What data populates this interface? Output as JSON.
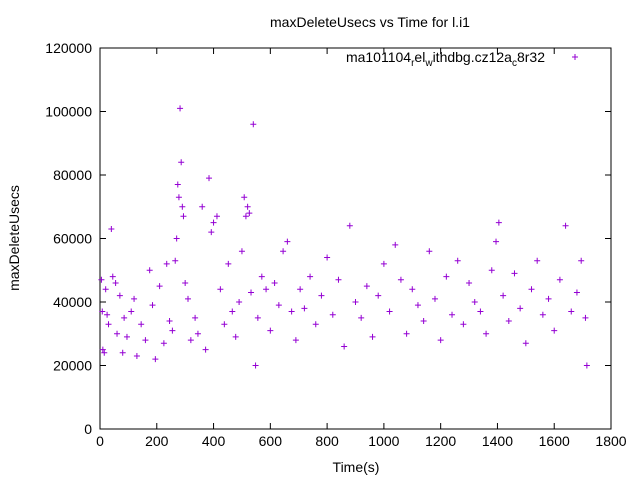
{
  "chart_data": {
    "type": "scatter",
    "title": "maxDeleteUsecs vs Time for l.i1",
    "xlabel": "Time(s)",
    "ylabel": "maxDeleteUsecs",
    "xlim": [
      0,
      1800
    ],
    "ylim": [
      0,
      120000
    ],
    "x_ticks": [
      0,
      200,
      400,
      600,
      800,
      1000,
      1200,
      1400,
      1600,
      1800
    ],
    "y_ticks": [
      0,
      20000,
      40000,
      60000,
      80000,
      100000,
      120000
    ],
    "x_tick_labels": [
      "0",
      "200",
      "400",
      "600",
      "800",
      "1000",
      "1200",
      "1400",
      "1600",
      "1800"
    ],
    "y_tick_labels": [
      "0",
      "20000",
      "40000",
      "60000",
      "80000",
      "100000",
      "120000"
    ],
    "grid": false,
    "legend_position": "top-right",
    "legend": {
      "parts": [
        {
          "text": "ma101104",
          "sub": false
        },
        {
          "text": "r",
          "sub": true
        },
        {
          "text": "el",
          "sub": false
        },
        {
          "text": "w",
          "sub": true
        },
        {
          "text": "ithdbg.cz12a",
          "sub": false
        },
        {
          "text": "c",
          "sub": true
        },
        {
          "text": "8r32",
          "sub": false
        }
      ]
    },
    "series": [
      {
        "name": "ma101104_rel_withdbg.cz12a_c8r32",
        "color": "#9400d3",
        "marker": "+",
        "points": [
          [
            5,
            47000
          ],
          [
            8,
            37000
          ],
          [
            10,
            25000
          ],
          [
            15,
            24000
          ],
          [
            20,
            44000
          ],
          [
            25,
            36000
          ],
          [
            30,
            33000
          ],
          [
            40,
            63000
          ],
          [
            45,
            48000
          ],
          [
            55,
            46000
          ],
          [
            60,
            30000
          ],
          [
            70,
            42000
          ],
          [
            80,
            24000
          ],
          [
            85,
            35000
          ],
          [
            95,
            29000
          ],
          [
            110,
            37000
          ],
          [
            120,
            41000
          ],
          [
            130,
            23000
          ],
          [
            145,
            33000
          ],
          [
            160,
            28000
          ],
          [
            175,
            50000
          ],
          [
            185,
            39000
          ],
          [
            195,
            22000
          ],
          [
            210,
            45000
          ],
          [
            225,
            27000
          ],
          [
            235,
            52000
          ],
          [
            245,
            34000
          ],
          [
            255,
            31000
          ],
          [
            265,
            53000
          ],
          [
            270,
            60000
          ],
          [
            274,
            77000
          ],
          [
            278,
            73000
          ],
          [
            282,
            101000
          ],
          [
            286,
            84000
          ],
          [
            290,
            70000
          ],
          [
            294,
            67000
          ],
          [
            300,
            46000
          ],
          [
            310,
            41000
          ],
          [
            320,
            28000
          ],
          [
            335,
            35000
          ],
          [
            345,
            30000
          ],
          [
            360,
            70000
          ],
          [
            372,
            25000
          ],
          [
            384,
            79000
          ],
          [
            392,
            62000
          ],
          [
            400,
            65000
          ],
          [
            412,
            67000
          ],
          [
            424,
            44000
          ],
          [
            438,
            33000
          ],
          [
            452,
            52000
          ],
          [
            466,
            37000
          ],
          [
            478,
            29000
          ],
          [
            490,
            40000
          ],
          [
            500,
            56000
          ],
          [
            508,
            73000
          ],
          [
            514,
            67000
          ],
          [
            520,
            70000
          ],
          [
            526,
            68000
          ],
          [
            532,
            43000
          ],
          [
            540,
            96000
          ],
          [
            548,
            20000
          ],
          [
            556,
            35000
          ],
          [
            570,
            48000
          ],
          [
            585,
            44000
          ],
          [
            600,
            31000
          ],
          [
            615,
            46000
          ],
          [
            630,
            39000
          ],
          [
            645,
            56000
          ],
          [
            660,
            59000
          ],
          [
            675,
            37000
          ],
          [
            690,
            28000
          ],
          [
            705,
            44000
          ],
          [
            720,
            38000
          ],
          [
            740,
            48000
          ],
          [
            760,
            33000
          ],
          [
            780,
            42000
          ],
          [
            800,
            54000
          ],
          [
            820,
            36000
          ],
          [
            840,
            47000
          ],
          [
            860,
            26000
          ],
          [
            880,
            64000
          ],
          [
            900,
            40000
          ],
          [
            920,
            35000
          ],
          [
            940,
            45000
          ],
          [
            960,
            29000
          ],
          [
            980,
            42000
          ],
          [
            1000,
            52000
          ],
          [
            1020,
            37000
          ],
          [
            1040,
            58000
          ],
          [
            1060,
            47000
          ],
          [
            1080,
            30000
          ],
          [
            1100,
            44000
          ],
          [
            1120,
            39000
          ],
          [
            1140,
            34000
          ],
          [
            1160,
            56000
          ],
          [
            1180,
            41000
          ],
          [
            1200,
            28000
          ],
          [
            1220,
            48000
          ],
          [
            1240,
            36000
          ],
          [
            1260,
            53000
          ],
          [
            1280,
            33000
          ],
          [
            1300,
            46000
          ],
          [
            1320,
            40000
          ],
          [
            1340,
            37000
          ],
          [
            1360,
            30000
          ],
          [
            1380,
            50000
          ],
          [
            1395,
            59000
          ],
          [
            1405,
            65000
          ],
          [
            1420,
            42000
          ],
          [
            1440,
            34000
          ],
          [
            1460,
            49000
          ],
          [
            1480,
            38000
          ],
          [
            1500,
            27000
          ],
          [
            1520,
            44000
          ],
          [
            1540,
            53000
          ],
          [
            1560,
            36000
          ],
          [
            1580,
            41000
          ],
          [
            1600,
            31000
          ],
          [
            1620,
            47000
          ],
          [
            1640,
            64000
          ],
          [
            1660,
            37000
          ],
          [
            1680,
            43000
          ],
          [
            1695,
            53000
          ],
          [
            1710,
            35000
          ],
          [
            1715,
            20000
          ]
        ]
      }
    ]
  }
}
